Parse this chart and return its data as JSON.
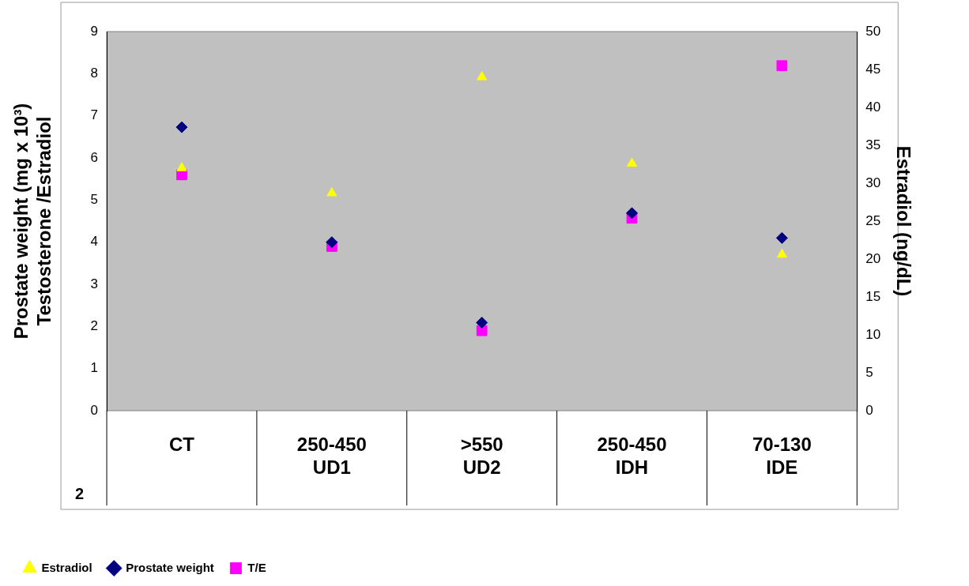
{
  "chart_data": {
    "type": "scatter",
    "categories": [
      "CT",
      "250-450\nUD1",
      ">550\nUD2",
      "250-450\nIDH",
      "70-130\nIDE"
    ],
    "ylabel": "Prostate weight (mg x 10³)\nTestosterone /Estradiol",
    "y2label": "Estradiol (ng/dL)",
    "ylim": [
      0,
      9
    ],
    "yticks": [
      0,
      1,
      2,
      3,
      4,
      5,
      6,
      7,
      8,
      9
    ],
    "y2lim": [
      0,
      50
    ],
    "y2ticks": [
      0,
      5,
      10,
      15,
      20,
      25,
      30,
      35,
      40,
      45,
      50
    ],
    "grid": false,
    "legend": "bottom",
    "annotations": [
      "2"
    ],
    "series": [
      {
        "name": "Estradiol",
        "color": "#ffff00",
        "marker": "triangle",
        "axis": "y2",
        "values": [
          32,
          28.7,
          44,
          32.6,
          20.6
        ]
      },
      {
        "name": "Prostate weight",
        "color": "#000080",
        "marker": "diamond",
        "values": [
          6.73,
          4.0,
          2.09,
          4.69,
          4.1
        ]
      },
      {
        "name": "T/E",
        "color": "#ff00ff",
        "marker": "square",
        "values": [
          5.6,
          3.9,
          1.9,
          4.57,
          8.19
        ]
      }
    ]
  }
}
